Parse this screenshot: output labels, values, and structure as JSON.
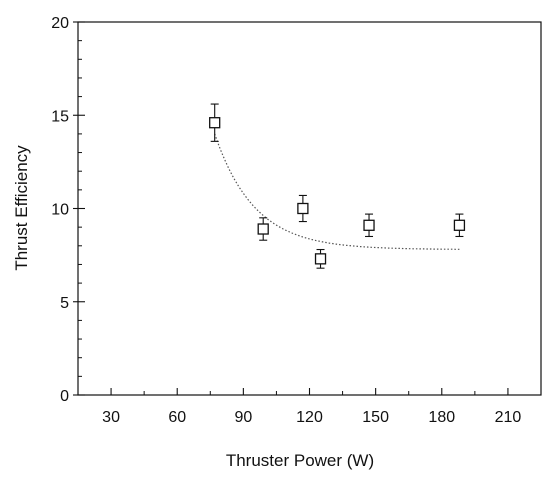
{
  "chart_data": {
    "type": "scatter",
    "title": "",
    "xlabel": "Thruster Power (W)",
    "ylabel": "Thrust Efficiency",
    "xlim": [
      15,
      225
    ],
    "ylim": [
      0,
      20
    ],
    "xticks": [
      30,
      60,
      90,
      120,
      150,
      180,
      210
    ],
    "yticks": [
      0,
      5,
      10,
      15,
      20
    ],
    "grid": false,
    "legend": "none",
    "marker": "open-square",
    "points": [
      {
        "x": 77,
        "y": 14.6,
        "err": 1.0
      },
      {
        "x": 99,
        "y": 8.9,
        "err": 0.6
      },
      {
        "x": 117,
        "y": 10.0,
        "err": 0.7
      },
      {
        "x": 125,
        "y": 7.3,
        "err": 0.5
      },
      {
        "x": 147,
        "y": 9.1,
        "err": 0.6
      },
      {
        "x": 188,
        "y": 9.1,
        "err": 0.6
      }
    ],
    "fit_curve": {
      "type": "exponential-decay",
      "x_range": [
        77,
        188
      ],
      "y0": 7.8,
      "amplitude": 6.2,
      "x_start": 77,
      "decay_constant": 18
    }
  }
}
